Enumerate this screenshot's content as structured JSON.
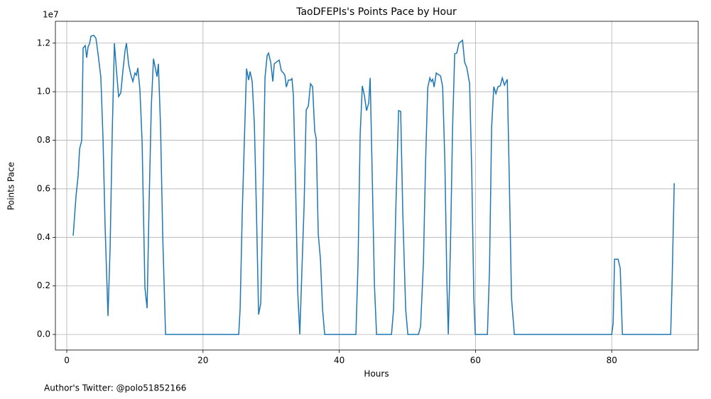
{
  "chart_data": {
    "type": "line",
    "title": "TaoDFEPIs's Points Pace by Hour",
    "xlabel": "Hours",
    "ylabel": "Points Pace",
    "y_offset_label": "1e7",
    "footnote": "Author's Twitter: @polo51852166",
    "grid": true,
    "xlim": [
      -1.67,
      92.7
    ],
    "ylim": [
      -0.064,
      1.29
    ],
    "xticks": [
      0,
      20,
      40,
      60,
      80
    ],
    "yticks": [
      {
        "value": 0,
        "label": "0.0"
      },
      0.2,
      0.4,
      0.6,
      0.8,
      {
        "value": 1,
        "label": "1.0"
      },
      1.2
    ],
    "x": [
      0.94,
      1.36,
      1.67,
      1.88,
      2.19,
      2.4,
      2.71,
      2.92,
      3.13,
      3.34,
      3.55,
      3.96,
      4.28,
      4.59,
      5.0,
      5.32,
      5.63,
      6.05,
      6.36,
      6.68,
      6.99,
      7.3,
      7.61,
      7.93,
      8.24,
      8.55,
      8.76,
      9.07,
      9.39,
      9.7,
      10.01,
      10.22,
      10.43,
      10.74,
      11.06,
      11.47,
      11.79,
      12.1,
      12.41,
      12.73,
      13.04,
      13.25,
      13.45,
      13.77,
      14.08,
      14.5,
      25.24,
      25.45,
      25.76,
      26.08,
      26.39,
      26.7,
      26.91,
      27.22,
      27.54,
      27.85,
      28.16,
      28.48,
      28.79,
      29.1,
      29.42,
      29.62,
      29.94,
      30.25,
      30.46,
      30.87,
      31.19,
      31.5,
      31.81,
      32.02,
      32.23,
      32.54,
      32.86,
      33.06,
      33.27,
      33.59,
      33.9,
      34.21,
      34.52,
      34.84,
      35.15,
      35.46,
      35.78,
      36.09,
      36.4,
      36.61,
      36.92,
      37.24,
      37.55,
      37.86,
      42.45,
      42.76,
      43.07,
      43.39,
      43.7,
      44.01,
      44.33,
      44.54,
      44.85,
      45.16,
      45.48,
      47.67,
      47.98,
      48.29,
      48.71,
      49.02,
      49.33,
      49.75,
      50.07,
      51.63,
      51.94,
      52.36,
      52.67,
      52.99,
      53.3,
      53.51,
      53.72,
      53.93,
      54.24,
      54.55,
      54.87,
      55.18,
      55.5,
      55.81,
      56.01,
      56.32,
      56.64,
      56.95,
      57.26,
      57.57,
      58.1,
      58.41,
      58.72,
      59.14,
      59.45,
      59.76,
      59.97,
      61.75,
      62.06,
      62.37,
      62.69,
      63.0,
      63.31,
      63.63,
      63.94,
      64.25,
      64.67,
      64.98,
      65.29,
      65.71,
      80.0,
      80.21,
      80.42,
      80.94,
      81.25,
      81.57,
      88.66,
      88.87,
      89.18
    ],
    "series": [
      {
        "name": "Points Pace",
        "color": "#1f77b4",
        "values": [
          0.407,
          0.571,
          0.656,
          0.764,
          0.799,
          1.18,
          1.19,
          1.14,
          1.185,
          1.197,
          1.229,
          1.232,
          1.22,
          1.156,
          1.06,
          0.808,
          0.442,
          0.076,
          0.354,
          0.837,
          1.2,
          1.086,
          0.98,
          0.995,
          1.086,
          1.168,
          1.2,
          1.115,
          1.071,
          1.042,
          1.077,
          1.068,
          1.098,
          1.007,
          0.793,
          0.193,
          0.108,
          0.559,
          0.939,
          1.136,
          1.092,
          1.062,
          1.115,
          0.852,
          0.413,
          0,
          0,
          0.105,
          0.5,
          0.808,
          1.095,
          1.048,
          1.083,
          1.042,
          0.866,
          0.5,
          0.082,
          0.129,
          0.559,
          1.057,
          1.15,
          1.159,
          1.121,
          1.042,
          1.115,
          1.124,
          1.13,
          1.086,
          1.077,
          1.068,
          1.019,
          1.048,
          1.048,
          1.054,
          0.983,
          0.618,
          0.179,
          0,
          0.266,
          0.53,
          0.925,
          0.94,
          1.033,
          1.021,
          0.837,
          0.808,
          0.413,
          0.31,
          0.105,
          0,
          0,
          0.296,
          0.822,
          1.024,
          0.983,
          0.922,
          0.954,
          1.057,
          0.647,
          0.208,
          0,
          0,
          0.105,
          0.5,
          0.922,
          0.919,
          0.5,
          0.105,
          0,
          0,
          0.032,
          0.296,
          0.705,
          1.016,
          1.057,
          1.042,
          1.051,
          1.019,
          1.077,
          1.071,
          1.065,
          1.021,
          0.72,
          0.208,
          0,
          0.354,
          0.852,
          1.156,
          1.159,
          1.2,
          1.212,
          1.121,
          1.1,
          1.033,
          0.676,
          0.149,
          0,
          0,
          0.266,
          0.852,
          1.021,
          0.992,
          1.021,
          1.024,
          1.057,
          1.027,
          1.051,
          0.618,
          0.149,
          0,
          0,
          0.047,
          0.31,
          0.31,
          0.272,
          0,
          0,
          0.222,
          0.623
        ]
      }
    ]
  }
}
